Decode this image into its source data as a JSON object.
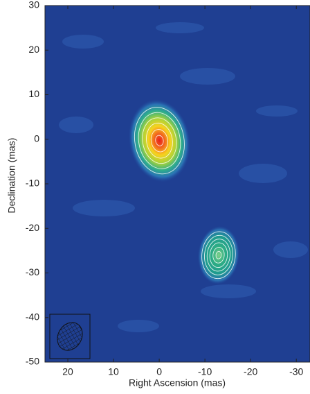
{
  "chart_data": {
    "type": "image",
    "xlabel": "Right Ascension (mas)",
    "ylabel": "Declination (mas)",
    "x": [
      0,
      -13
    ],
    "y": [
      0,
      -26
    ],
    "xlim": [
      25,
      -33
    ],
    "ylim": [
      -50,
      30
    ],
    "xticks": [
      20,
      10,
      0,
      -10,
      -20,
      -30
    ],
    "yticks": [
      30,
      20,
      10,
      0,
      -10,
      -20,
      -30,
      -40,
      -50
    ]
  }
}
